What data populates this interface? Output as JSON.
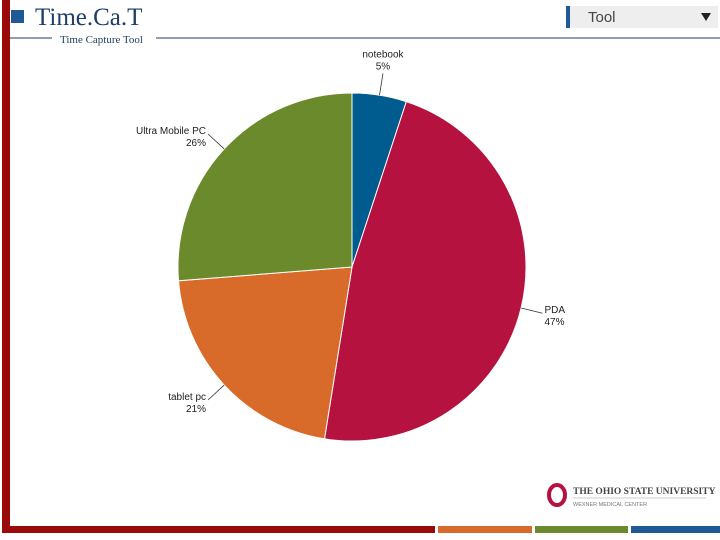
{
  "header": {
    "title": "Time.Ca.T",
    "subtitle": "Time Capture Tool",
    "dropdown": "Tool"
  },
  "footer": {
    "university": "The Ohio State University",
    "center": "Wexner Medical Center"
  },
  "chart_data": {
    "type": "pie",
    "categories": [
      "notebook",
      "PDA",
      "tablet pc",
      "Ultra Mobile PC"
    ],
    "values": [
      5,
      47,
      21,
      26
    ],
    "value_labels": [
      "5%",
      "47%",
      "21%",
      "26%"
    ],
    "colors": [
      "#005b8e",
      "#b5123f",
      "#d96b2a",
      "#6b8a2b"
    ]
  }
}
